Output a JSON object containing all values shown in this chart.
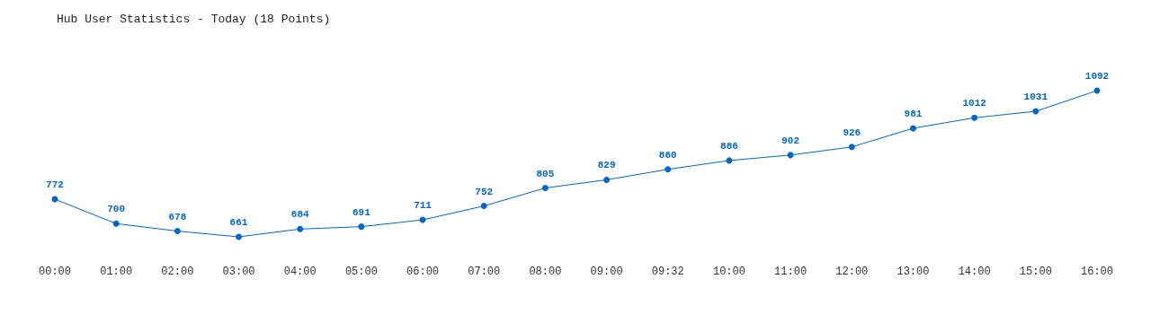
{
  "chart_data": {
    "type": "line",
    "title": "Hub User Statistics - Today (18 Points)",
    "categories": [
      "00:00",
      "01:00",
      "02:00",
      "03:00",
      "04:00",
      "05:00",
      "06:00",
      "07:00",
      "08:00",
      "09:00",
      "09:32",
      "10:00",
      "11:00",
      "12:00",
      "13:00",
      "14:00",
      "15:00",
      "16:00"
    ],
    "series": [
      {
        "color": "#0066cc",
        "values": [
          772,
          700,
          678,
          661,
          684,
          691,
          711,
          752,
          805,
          829,
          860,
          886,
          902,
          926,
          981,
          1012,
          1031,
          1092
        ]
      }
    ],
    "data_labels": true,
    "marker": "circle",
    "line_style": "solid"
  }
}
